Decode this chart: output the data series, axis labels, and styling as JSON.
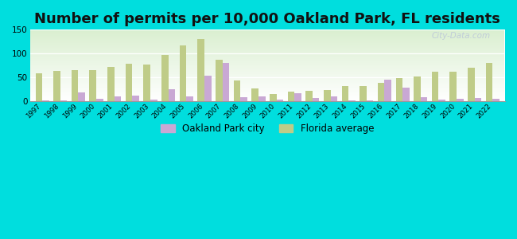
{
  "title": "Number of permits per 10,000 Oakland Park, FL residents",
  "years": [
    1997,
    1998,
    1999,
    2000,
    2001,
    2002,
    2003,
    2004,
    2005,
    2006,
    2007,
    2008,
    2009,
    2010,
    2011,
    2012,
    2013,
    2014,
    2015,
    2016,
    2017,
    2018,
    2019,
    2020,
    2021,
    2022
  ],
  "oakland_park": [
    1,
    1,
    18,
    5,
    10,
    12,
    3,
    25,
    10,
    54,
    80,
    8,
    10,
    3,
    16,
    7,
    10,
    2,
    2,
    45,
    28,
    8,
    3,
    5,
    7,
    5
  ],
  "florida_avg": [
    58,
    63,
    65,
    66,
    72,
    78,
    77,
    97,
    117,
    131,
    87,
    43,
    27,
    15,
    20,
    22,
    23,
    32,
    32,
    38,
    49,
    52,
    62,
    62,
    70,
    80
  ],
  "oakland_color": "#c9a8d4",
  "florida_color": "#bfcc88",
  "background_outer": "#00dede",
  "ylim": [
    0,
    150
  ],
  "yticks": [
    0,
    50,
    100,
    150
  ],
  "title_fontsize": 13,
  "legend_labels": [
    "Oakland Park city",
    "Florida average"
  ],
  "watermark": "City-Data.com"
}
